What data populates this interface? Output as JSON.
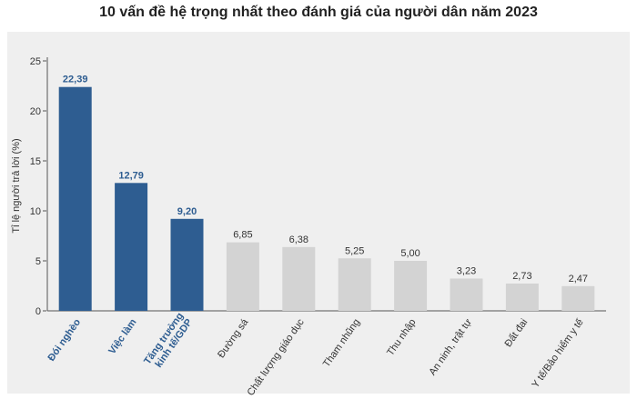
{
  "chart_data": {
    "type": "bar",
    "title": "10 vấn đề hệ trọng nhất theo đánh giá của người dân năm 2023",
    "ylabel": "Tỉ lệ người trả lời (%)",
    "xlabel": "",
    "ylim": [
      0,
      25
    ],
    "yticks": [
      "0",
      "5",
      "10",
      "15",
      "20",
      "25"
    ],
    "grid": false,
    "colors": {
      "highlight": "#2e5d91",
      "other": "#d3d3d3"
    },
    "bars": [
      {
        "lines": [
          "Đói nghèo"
        ],
        "value": 22.39,
        "label": "22,39",
        "highlight": true
      },
      {
        "lines": [
          "Việc làm"
        ],
        "value": 12.79,
        "label": "12,79",
        "highlight": true
      },
      {
        "lines": [
          "Tăng trưởng",
          "kinh tế/GDP"
        ],
        "value": 9.2,
        "label": "9,20",
        "highlight": true
      },
      {
        "lines": [
          "Đường sá"
        ],
        "value": 6.85,
        "label": "6,85",
        "highlight": false
      },
      {
        "lines": [
          "Chất lượng giáo dục"
        ],
        "value": 6.38,
        "label": "6,38",
        "highlight": false
      },
      {
        "lines": [
          "Tham nhũng"
        ],
        "value": 5.25,
        "label": "5,25",
        "highlight": false
      },
      {
        "lines": [
          "Thu nhập"
        ],
        "value": 5.0,
        "label": "5,00",
        "highlight": false
      },
      {
        "lines": [
          "An ninh, trật tự"
        ],
        "value": 3.23,
        "label": "3,23",
        "highlight": false
      },
      {
        "lines": [
          "Đất đai"
        ],
        "value": 2.73,
        "label": "2,73",
        "highlight": false
      },
      {
        "lines": [
          "Y tế/Bảo hiểm y tế"
        ],
        "value": 2.47,
        "label": "2,47",
        "highlight": false
      }
    ]
  }
}
